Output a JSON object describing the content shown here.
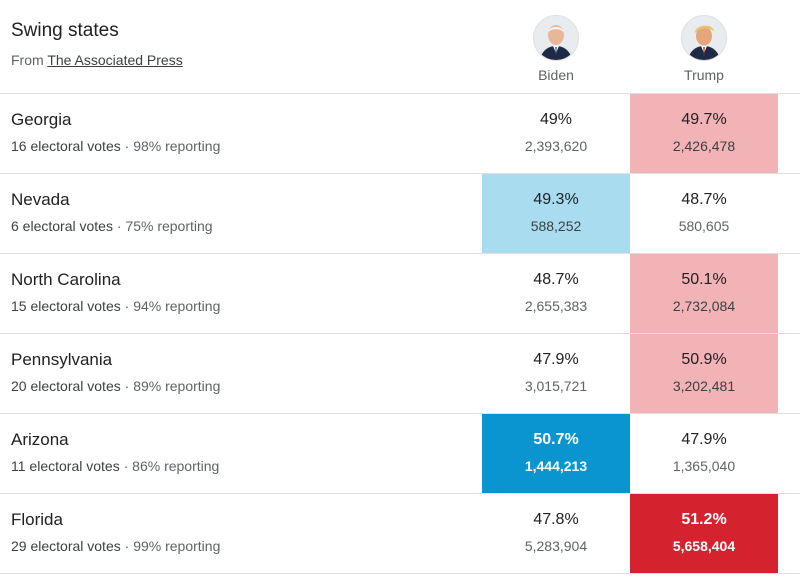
{
  "header": {
    "title": "Swing states",
    "source_prefix": "From ",
    "source_link": "The Associated Press",
    "candidates": [
      {
        "name": "Biden",
        "color": "#0a95d1"
      },
      {
        "name": "Trump",
        "color": "#d4232f"
      }
    ]
  },
  "rows": [
    {
      "state": "Georgia",
      "electoral_votes": "16 electoral votes",
      "separator": " · ",
      "reporting": "98% reporting",
      "biden": {
        "pct": "49%",
        "votes": "2,393,620",
        "shade": "none"
      },
      "trump": {
        "pct": "49.7%",
        "votes": "2,426,478",
        "shade": "light"
      }
    },
    {
      "state": "Nevada",
      "electoral_votes": "6 electoral votes",
      "separator": " · ",
      "reporting": "75% reporting",
      "biden": {
        "pct": "49.3%",
        "votes": "588,252",
        "shade": "light"
      },
      "trump": {
        "pct": "48.7%",
        "votes": "580,605",
        "shade": "none"
      }
    },
    {
      "state": "North Carolina",
      "electoral_votes": "15 electoral votes",
      "separator": " · ",
      "reporting": "94% reporting",
      "biden": {
        "pct": "48.7%",
        "votes": "2,655,383",
        "shade": "none"
      },
      "trump": {
        "pct": "50.1%",
        "votes": "2,732,084",
        "shade": "light"
      }
    },
    {
      "state": "Pennsylvania",
      "electoral_votes": "20 electoral votes",
      "separator": " · ",
      "reporting": "89% reporting",
      "biden": {
        "pct": "47.9%",
        "votes": "3,015,721",
        "shade": "none"
      },
      "trump": {
        "pct": "50.9%",
        "votes": "3,202,481",
        "shade": "light"
      }
    },
    {
      "state": "Arizona",
      "electoral_votes": "11 electoral votes",
      "separator": " · ",
      "reporting": "86% reporting",
      "biden": {
        "pct": "50.7%",
        "votes": "1,444,213",
        "shade": "dark"
      },
      "trump": {
        "pct": "47.9%",
        "votes": "1,365,040",
        "shade": "none"
      }
    },
    {
      "state": "Florida",
      "electoral_votes": "29 electoral votes",
      "separator": " · ",
      "reporting": "99% reporting",
      "biden": {
        "pct": "47.8%",
        "votes": "5,283,904",
        "shade": "none"
      },
      "trump": {
        "pct": "51.2%",
        "votes": "5,658,404",
        "shade": "dark"
      }
    }
  ]
}
